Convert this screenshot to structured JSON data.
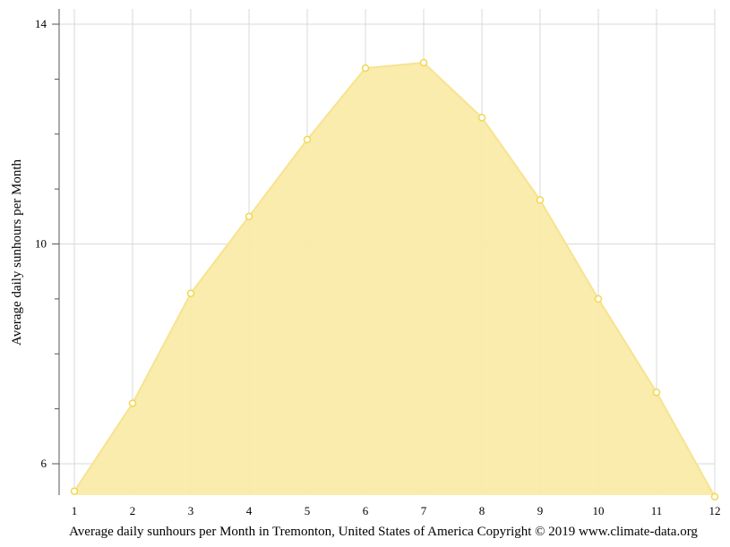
{
  "chart_data": {
    "type": "area",
    "x": [
      1,
      2,
      3,
      4,
      5,
      6,
      7,
      8,
      9,
      10,
      11,
      12
    ],
    "series": [
      {
        "values": [
          5.5,
          7.1,
          9.1,
          10.5,
          11.9,
          13.2,
          13.3,
          12.3,
          10.8,
          9.0,
          7.3,
          5.4
        ]
      }
    ],
    "xlabel": "Average daily sunhours per Month in Tremonton, United States of America Copyright © 2019 www.climate-data.org",
    "ylabel": "Average daily sunhours per Month",
    "xlim": [
      1,
      12
    ],
    "ylim": [
      5.4,
      14.3
    ],
    "x_ticks": [
      1,
      2,
      3,
      4,
      5,
      6,
      7,
      8,
      9,
      10,
      11,
      12
    ],
    "y_ticks_labeled": [
      6,
      10,
      14
    ],
    "y_ticks_minor": [
      7,
      8,
      9,
      11,
      12,
      13
    ],
    "grid": true,
    "legend": "none",
    "colors": {
      "fill": "#f9eba8",
      "line": "#f7e390",
      "point_fill": "#ffffff",
      "point_stroke": "#f2d74f"
    }
  }
}
